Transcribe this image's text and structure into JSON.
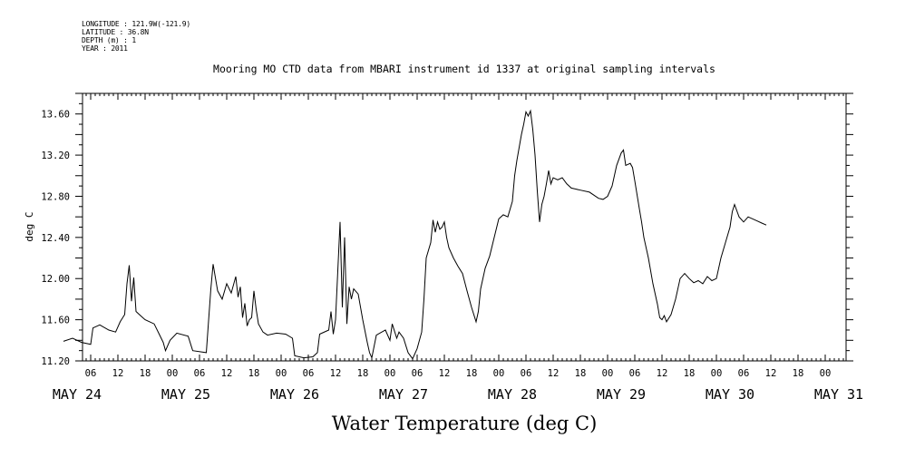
{
  "header": {
    "longitude": "LONGITUDE : 121.9W(-121.9)",
    "latitude": "LATITUDE : 36.8N",
    "depth": "DEPTH (m) : 1",
    "year": "YEAR : 2011"
  },
  "chart_data": {
    "type": "line",
    "title": "Mooring MO CTD data from MBARI instrument id 1337 at original sampling intervals",
    "xlabel": "Water Temperature (deg C)",
    "ylabel": "deg C",
    "ylim": [
      11.2,
      13.8
    ],
    "xlim_hours_label": "hours since 2011-05-24 00:00",
    "y_ticks": [
      "11.20",
      "11.60",
      "12.00",
      "12.40",
      "12.80",
      "13.20",
      "13.60"
    ],
    "hour_ticks": [
      "06",
      "12",
      "18",
      "00",
      "06",
      "12",
      "18",
      "00",
      "06",
      "12",
      "18",
      "00",
      "06",
      "12",
      "18",
      "00",
      "06",
      "12",
      "18",
      "00",
      "06",
      "12",
      "18",
      "00",
      "06",
      "12",
      "18",
      "00"
    ],
    "day_labels": [
      "MAY 24",
      "MAY 25",
      "MAY 26",
      "MAY 27",
      "MAY 28",
      "MAY 29",
      "MAY 30",
      "MAY 31"
    ],
    "grid": false,
    "series": [
      {
        "name": "",
        "points": [
          [
            0.0,
            11.39
          ],
          [
            2.0,
            11.42
          ],
          [
            4.0,
            11.38
          ],
          [
            6.0,
            11.36
          ],
          [
            6.5,
            11.52
          ],
          [
            8.0,
            11.55
          ],
          [
            10.0,
            11.5
          ],
          [
            11.5,
            11.48
          ],
          [
            12.5,
            11.58
          ],
          [
            13.5,
            11.65
          ],
          [
            14.0,
            11.95
          ],
          [
            14.5,
            12.13
          ],
          [
            15.0,
            11.78
          ],
          [
            15.5,
            12.01
          ],
          [
            16.0,
            11.68
          ],
          [
            17.0,
            11.64
          ],
          [
            18.0,
            11.6
          ],
          [
            20.0,
            11.56
          ],
          [
            21.0,
            11.47
          ],
          [
            22.0,
            11.38
          ],
          [
            22.5,
            11.3
          ],
          [
            23.5,
            11.4
          ],
          [
            25.0,
            11.47
          ],
          [
            27.5,
            11.44
          ],
          [
            28.5,
            11.3
          ],
          [
            31.5,
            11.28
          ],
          [
            32.5,
            11.9
          ],
          [
            33.0,
            12.14
          ],
          [
            34.0,
            11.88
          ],
          [
            35.0,
            11.8
          ],
          [
            36.0,
            11.95
          ],
          [
            37.0,
            11.86
          ],
          [
            38.0,
            12.02
          ],
          [
            38.5,
            11.82
          ],
          [
            39.0,
            11.92
          ],
          [
            39.5,
            11.62
          ],
          [
            40.0,
            11.76
          ],
          [
            40.5,
            11.54
          ],
          [
            41.0,
            11.6
          ],
          [
            41.5,
            11.62
          ],
          [
            42.0,
            11.88
          ],
          [
            42.5,
            11.7
          ],
          [
            43.0,
            11.56
          ],
          [
            44.0,
            11.48
          ],
          [
            45.0,
            11.45
          ],
          [
            47.0,
            11.47
          ],
          [
            49.0,
            11.46
          ],
          [
            50.5,
            11.42
          ],
          [
            51.0,
            11.25
          ],
          [
            53.0,
            11.23
          ],
          [
            55.0,
            11.24
          ],
          [
            56.0,
            11.28
          ],
          [
            56.5,
            11.46
          ],
          [
            58.5,
            11.5
          ],
          [
            59.0,
            11.68
          ],
          [
            59.5,
            11.46
          ],
          [
            60.0,
            11.6
          ],
          [
            61.0,
            12.55
          ],
          [
            61.5,
            11.72
          ],
          [
            62.0,
            12.4
          ],
          [
            62.5,
            11.56
          ],
          [
            63.0,
            11.92
          ],
          [
            63.5,
            11.8
          ],
          [
            64.0,
            11.9
          ],
          [
            65.0,
            11.85
          ],
          [
            66.0,
            11.6
          ],
          [
            67.0,
            11.38
          ],
          [
            67.5,
            11.28
          ],
          [
            68.0,
            11.23
          ],
          [
            69.0,
            11.45
          ],
          [
            71.0,
            11.5
          ],
          [
            72.0,
            11.4
          ],
          [
            72.5,
            11.56
          ],
          [
            73.5,
            11.42
          ],
          [
            74.0,
            11.48
          ],
          [
            75.0,
            11.42
          ],
          [
            76.0,
            11.28
          ],
          [
            77.0,
            11.22
          ],
          [
            78.0,
            11.32
          ],
          [
            79.0,
            11.48
          ],
          [
            79.5,
            11.8
          ],
          [
            80.0,
            12.2
          ],
          [
            81.0,
            12.35
          ],
          [
            81.5,
            12.57
          ],
          [
            82.0,
            12.45
          ],
          [
            82.5,
            12.55
          ],
          [
            83.0,
            12.48
          ],
          [
            83.5,
            12.5
          ],
          [
            84.0,
            12.55
          ],
          [
            84.5,
            12.4
          ],
          [
            85.0,
            12.3
          ],
          [
            86.0,
            12.2
          ],
          [
            87.0,
            12.12
          ],
          [
            88.0,
            12.05
          ],
          [
            89.0,
            11.88
          ],
          [
            90.0,
            11.72
          ],
          [
            91.0,
            11.58
          ],
          [
            91.5,
            11.68
          ],
          [
            92.0,
            11.9
          ],
          [
            93.0,
            12.1
          ],
          [
            94.0,
            12.22
          ],
          [
            95.0,
            12.4
          ],
          [
            96.0,
            12.58
          ],
          [
            97.0,
            12.62
          ],
          [
            98.0,
            12.6
          ],
          [
            99.0,
            12.75
          ],
          [
            99.5,
            13.0
          ],
          [
            100.0,
            13.15
          ],
          [
            101.0,
            13.4
          ],
          [
            101.5,
            13.5
          ],
          [
            102.0,
            13.62
          ],
          [
            102.5,
            13.58
          ],
          [
            103.0,
            13.63
          ],
          [
            103.5,
            13.45
          ],
          [
            104.0,
            13.2
          ],
          [
            104.5,
            12.85
          ],
          [
            105.0,
            12.55
          ],
          [
            105.5,
            12.72
          ],
          [
            106.0,
            12.8
          ],
          [
            106.5,
            12.92
          ],
          [
            107.0,
            13.05
          ],
          [
            107.5,
            12.92
          ],
          [
            108.0,
            12.98
          ],
          [
            109.0,
            12.96
          ],
          [
            110.0,
            12.98
          ],
          [
            111.0,
            12.92
          ],
          [
            112.0,
            12.88
          ],
          [
            114.0,
            12.86
          ],
          [
            116.0,
            12.84
          ],
          [
            118.0,
            12.78
          ],
          [
            119.0,
            12.77
          ],
          [
            120.0,
            12.8
          ],
          [
            121.0,
            12.9
          ],
          [
            122.0,
            13.1
          ],
          [
            123.0,
            13.22
          ],
          [
            123.5,
            13.25
          ],
          [
            124.0,
            13.1
          ],
          [
            125.0,
            13.12
          ],
          [
            125.5,
            13.08
          ],
          [
            126.0,
            12.95
          ],
          [
            127.0,
            12.68
          ],
          [
            127.5,
            12.55
          ],
          [
            128.0,
            12.4
          ],
          [
            129.0,
            12.2
          ],
          [
            130.0,
            11.95
          ],
          [
            131.0,
            11.75
          ],
          [
            131.5,
            11.62
          ],
          [
            132.0,
            11.6
          ],
          [
            132.5,
            11.64
          ],
          [
            133.0,
            11.58
          ],
          [
            134.0,
            11.65
          ],
          [
            135.0,
            11.8
          ],
          [
            136.0,
            12.0
          ],
          [
            137.0,
            12.05
          ],
          [
            138.0,
            12.0
          ],
          [
            139.0,
            11.96
          ],
          [
            140.0,
            11.98
          ],
          [
            141.0,
            11.95
          ],
          [
            142.0,
            12.02
          ],
          [
            143.0,
            11.98
          ],
          [
            144.0,
            12.0
          ],
          [
            145.0,
            12.2
          ],
          [
            146.0,
            12.35
          ],
          [
            147.0,
            12.5
          ],
          [
            147.5,
            12.65
          ],
          [
            148.0,
            12.72
          ],
          [
            149.0,
            12.6
          ],
          [
            150.0,
            12.55
          ],
          [
            151.0,
            12.6
          ],
          [
            152.0,
            12.58
          ],
          [
            153.0,
            12.56
          ],
          [
            154.0,
            12.54
          ],
          [
            155.0,
            12.52
          ]
        ]
      }
    ]
  }
}
